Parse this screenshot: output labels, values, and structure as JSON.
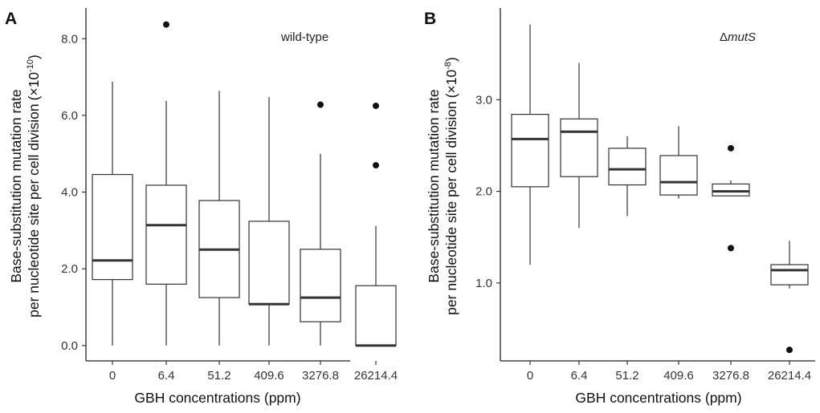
{
  "chart_data": [
    {
      "type": "box",
      "panel": "A",
      "annotation": "wild-type",
      "xlabel": "GBH concentrations (ppm)",
      "ylabel_line1": "Base-substitution mutation rate",
      "ylabel_line2": "per nucleotide site per cell division",
      "ylabel_unit_base": "(×10",
      "ylabel_unit_exp": "-10",
      "ylabel_unit_close": ")",
      "categories": [
        "0",
        "6.4",
        "51.2",
        "409.6",
        "3276.8",
        "26214.4"
      ],
      "yticks": [
        "0.0",
        "2.0",
        "4.0",
        "6.0",
        "8.0"
      ],
      "ytick_values": [
        0,
        2,
        4,
        6,
        8
      ],
      "ylim": [
        -0.4,
        8.8
      ],
      "boxes": [
        {
          "min": 0.0,
          "q1": 1.72,
          "median": 2.22,
          "q3": 4.46,
          "max": 6.88,
          "outliers": []
        },
        {
          "min": 0.0,
          "q1": 1.6,
          "median": 3.14,
          "q3": 4.18,
          "max": 6.38,
          "outliers": [
            8.37
          ]
        },
        {
          "min": 0.0,
          "q1": 1.25,
          "median": 2.5,
          "q3": 3.78,
          "max": 6.64,
          "outliers": []
        },
        {
          "min": 0.0,
          "q1": 1.08,
          "median": 1.08,
          "q3": 3.24,
          "max": 6.48,
          "outliers": []
        },
        {
          "min": 0.0,
          "q1": 0.62,
          "median": 1.25,
          "q3": 2.51,
          "max": 5.0,
          "outliers": [
            6.28
          ]
        },
        {
          "min": 0.0,
          "q1": 0.0,
          "median": 0.0,
          "q3": 1.56,
          "max": 3.12,
          "outliers": [
            4.7,
            6.25
          ]
        }
      ]
    },
    {
      "type": "box",
      "panel": "B",
      "annotation_prefix": "Δ",
      "annotation_italic": "mutS",
      "xlabel": "GBH concentrations (ppm)",
      "ylabel_line1": "Base-substitution mutation rate",
      "ylabel_line2": "per nucleotide site per cell division",
      "ylabel_unit_base": "(×10",
      "ylabel_unit_exp": "-8",
      "ylabel_unit_close": ")",
      "categories": [
        "0",
        "6.4",
        "51.2",
        "409.6",
        "3276.8",
        "26214.4"
      ],
      "yticks": [
        "1.0",
        "2.0",
        "3.0"
      ],
      "ytick_values": [
        1,
        2,
        3
      ],
      "ylim": [
        0.15,
        4.0
      ],
      "boxes": [
        {
          "min": 1.2,
          "q1": 2.05,
          "median": 2.57,
          "q3": 2.84,
          "max": 3.82,
          "outliers": []
        },
        {
          "min": 1.6,
          "q1": 2.16,
          "median": 2.65,
          "q3": 2.79,
          "max": 3.4,
          "outliers": []
        },
        {
          "min": 1.73,
          "q1": 2.07,
          "median": 2.24,
          "q3": 2.47,
          "max": 2.6,
          "outliers": []
        },
        {
          "min": 1.92,
          "q1": 1.96,
          "median": 2.1,
          "q3": 2.39,
          "max": 2.71,
          "outliers": []
        },
        {
          "min": 1.95,
          "q1": 1.95,
          "median": 2.0,
          "q3": 2.08,
          "max": 2.12,
          "outliers": [
            1.38,
            2.47
          ]
        },
        {
          "min": 0.94,
          "q1": 0.98,
          "median": 1.14,
          "q3": 1.2,
          "max": 1.46,
          "outliers": [
            0.27
          ]
        }
      ]
    }
  ]
}
